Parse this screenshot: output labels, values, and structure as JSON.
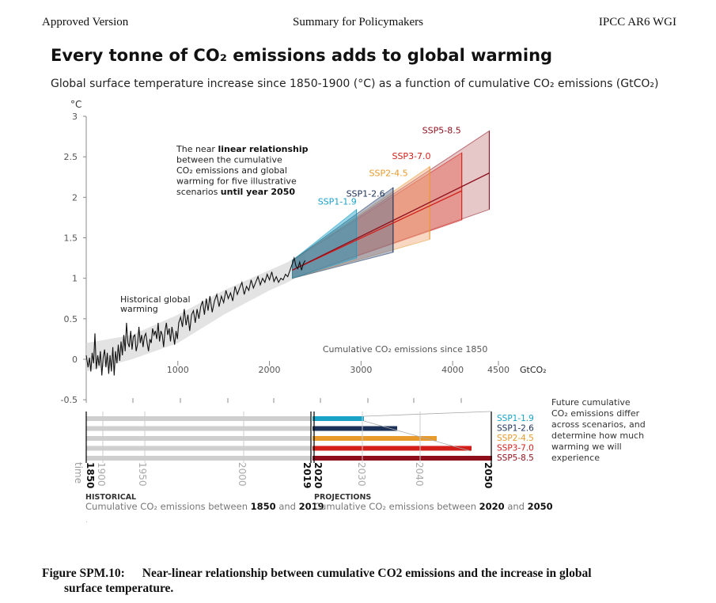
{
  "header": {
    "left": "Approved Version",
    "center": "Summary for Policymakers",
    "right": "IPCC AR6 WGI"
  },
  "title": "Every tonne of CO₂ emissions adds to global warming",
  "subtitle": "Global surface temperature increase since 1850-1900 (°C) as a function of cumulative CO₂ emissions (GtCO₂)",
  "chart_data": {
    "type": "line",
    "ylabel": "°C",
    "xlabel": "GtCO₂",
    "x_axis_title": "Cumulative CO₂ emissions since 1850",
    "ylim": [
      -0.5,
      3
    ],
    "xlim": [
      0,
      4500
    ],
    "y_ticks": [
      "3",
      "2.5",
      "2",
      "1.5",
      "1",
      "0.5",
      "0",
      "-0.5"
    ],
    "x_ticks": [
      "1000",
      "2000",
      "3000",
      "4000",
      "4500"
    ],
    "annotation_linear_lines": [
      {
        "parts": [
          {
            "t": "The near ",
            "b": false
          },
          {
            "t": "linear relationship",
            "b": true
          }
        ]
      },
      {
        "parts": [
          {
            "t": "between the cumulative",
            "b": false
          }
        ]
      },
      {
        "parts": [
          {
            "t": "CO₂ emissions and global",
            "b": false
          }
        ]
      },
      {
        "parts": [
          {
            "t": "warming for five illustrative",
            "b": false
          }
        ]
      },
      {
        "parts": [
          {
            "t": "scenarios ",
            "b": false
          },
          {
            "t": "until year 2050",
            "b": true
          }
        ]
      }
    ],
    "annotation_historical": [
      "Historical global",
      "warming"
    ],
    "historical": [
      [
        0,
        0.05
      ],
      [
        20,
        -0.1
      ],
      [
        35,
        0.02
      ],
      [
        50,
        -0.15
      ],
      [
        65,
        0.08
      ],
      [
        80,
        -0.05
      ],
      [
        95,
        0.32
      ],
      [
        110,
        -0.12
      ],
      [
        125,
        0.05
      ],
      [
        140,
        -0.08
      ],
      [
        155,
        0.1
      ],
      [
        170,
        -0.2
      ],
      [
        185,
        0.02
      ],
      [
        200,
        0.12
      ],
      [
        215,
        -0.1
      ],
      [
        230,
        0.08
      ],
      [
        245,
        -0.18
      ],
      [
        260,
        0.05
      ],
      [
        275,
        -0.15
      ],
      [
        290,
        0.15
      ],
      [
        305,
        -0.2
      ],
      [
        320,
        0.1
      ],
      [
        335,
        -0.05
      ],
      [
        350,
        0.18
      ],
      [
        365,
        -0.02
      ],
      [
        380,
        0.22
      ],
      [
        395,
        0.05
      ],
      [
        410,
        0.3
      ],
      [
        425,
        0.1
      ],
      [
        440,
        0.45
      ],
      [
        455,
        0.2
      ],
      [
        470,
        0.15
      ],
      [
        485,
        0.35
      ],
      [
        500,
        0.12
      ],
      [
        515,
        0.28
      ],
      [
        530,
        0.3
      ],
      [
        545,
        0.1
      ],
      [
        560,
        0.18
      ],
      [
        575,
        0.4
      ],
      [
        590,
        0.2
      ],
      [
        605,
        0.3
      ],
      [
        620,
        0.15
      ],
      [
        635,
        0.28
      ],
      [
        650,
        0.32
      ],
      [
        665,
        0.2
      ],
      [
        680,
        0.1
      ],
      [
        695,
        0.25
      ],
      [
        710,
        0.2
      ],
      [
        725,
        0.38
      ],
      [
        740,
        0.3
      ],
      [
        755,
        0.35
      ],
      [
        770,
        0.25
      ],
      [
        785,
        0.45
      ],
      [
        800,
        0.22
      ],
      [
        815,
        0.35
      ],
      [
        830,
        0.3
      ],
      [
        845,
        0.15
      ],
      [
        860,
        0.35
      ],
      [
        875,
        0.45
      ],
      [
        890,
        0.3
      ],
      [
        905,
        0.38
      ],
      [
        920,
        0.22
      ],
      [
        935,
        0.4
      ],
      [
        950,
        0.3
      ],
      [
        965,
        0.18
      ],
      [
        980,
        0.35
      ],
      [
        995,
        0.25
      ],
      [
        1010,
        0.45
      ],
      [
        1030,
        0.52
      ],
      [
        1050,
        0.4
      ],
      [
        1070,
        0.62
      ],
      [
        1090,
        0.42
      ],
      [
        1110,
        0.55
      ],
      [
        1130,
        0.35
      ],
      [
        1150,
        0.55
      ],
      [
        1170,
        0.6
      ],
      [
        1190,
        0.45
      ],
      [
        1210,
        0.62
      ],
      [
        1230,
        0.5
      ],
      [
        1250,
        0.65
      ],
      [
        1270,
        0.72
      ],
      [
        1290,
        0.55
      ],
      [
        1310,
        0.75
      ],
      [
        1330,
        0.6
      ],
      [
        1350,
        0.78
      ],
      [
        1375,
        0.58
      ],
      [
        1400,
        0.72
      ],
      [
        1425,
        0.8
      ],
      [
        1450,
        0.65
      ],
      [
        1475,
        0.78
      ],
      [
        1500,
        0.7
      ],
      [
        1525,
        0.85
      ],
      [
        1550,
        0.75
      ],
      [
        1575,
        0.82
      ],
      [
        1600,
        0.72
      ],
      [
        1625,
        0.9
      ],
      [
        1650,
        0.8
      ],
      [
        1675,
        0.88
      ],
      [
        1700,
        0.95
      ],
      [
        1725,
        0.8
      ],
      [
        1750,
        0.9
      ],
      [
        1775,
        0.85
      ],
      [
        1800,
        0.98
      ],
      [
        1825,
        0.88
      ],
      [
        1850,
        0.95
      ],
      [
        1875,
        1.02
      ],
      [
        1900,
        0.92
      ],
      [
        1925,
        1.0
      ],
      [
        1950,
        0.95
      ],
      [
        1975,
        1.05
      ],
      [
        2000,
        0.98
      ],
      [
        2025,
        1.08
      ],
      [
        2050,
        0.96
      ],
      [
        2075,
        1.02
      ],
      [
        2100,
        0.95
      ],
      [
        2125,
        1.0
      ],
      [
        2150,
        0.98
      ],
      [
        2175,
        1.05
      ],
      [
        2200,
        1.02
      ],
      [
        2225,
        1.1
      ],
      [
        2250,
        1.18
      ],
      [
        2270,
        1.25
      ],
      [
        2290,
        1.15
      ],
      [
        2310,
        1.12
      ],
      [
        2330,
        1.2
      ],
      [
        2350,
        1.1
      ],
      [
        2370,
        1.18
      ],
      [
        2390,
        1.22
      ]
    ],
    "historical_band_upper": [
      [
        0,
        0.2
      ],
      [
        500,
        0.3
      ],
      [
        1000,
        0.55
      ],
      [
        1500,
        0.85
      ],
      [
        2000,
        1.1
      ],
      [
        2200,
        1.2
      ],
      [
        2400,
        1.35
      ]
    ],
    "historical_band_lower": [
      [
        0,
        -0.15
      ],
      [
        500,
        0.0
      ],
      [
        1000,
        0.2
      ],
      [
        1500,
        0.55
      ],
      [
        2000,
        0.85
      ],
      [
        2200,
        0.95
      ],
      [
        2400,
        1.08
      ]
    ],
    "scenarios": [
      {
        "name": "SSP1-1.9",
        "color": "#1ba2c7",
        "fill": "#1ba2c7",
        "x_end": 2950,
        "center_end": 1.6,
        "upper_end": 1.85,
        "lower_end": 1.25,
        "draw_line": false
      },
      {
        "name": "SSP1-2.6",
        "color": "#1b3158",
        "fill": "#5a6f94",
        "x_end": 3350,
        "center_end": 1.7,
        "upper_end": 2.12,
        "lower_end": 1.32,
        "draw_line": false
      },
      {
        "name": "SSP2-4.5",
        "color": "#e89a2c",
        "fill": "#efa67a",
        "x_end": 3750,
        "center_end": 1.88,
        "upper_end": 2.38,
        "lower_end": 1.48,
        "draw_line": false
      },
      {
        "name": "SSP3-7.0",
        "color": "#d21f1a",
        "fill": "#e55e4e",
        "x_end": 4100,
        "center_end": 2.08,
        "upper_end": 2.55,
        "lower_end": 1.72,
        "draw_line": true
      },
      {
        "name": "SSP5-8.5",
        "color": "#8e0e1b",
        "fill": "#c78686",
        "x_end": 4400,
        "center_end": 2.3,
        "upper_end": 2.82,
        "lower_end": 1.85,
        "draw_line": true
      }
    ],
    "projection_start": {
      "x": 2250,
      "upper": 1.22,
      "lower": 1.0,
      "center": 1.1
    }
  },
  "timeline": {
    "time_label": "time",
    "year_labels_bold": [
      "1850",
      "2019",
      "2020",
      "2050"
    ],
    "year_labels_light": [
      "1900",
      "1950",
      "2000",
      "2030",
      "2040"
    ],
    "historical_title": "HISTORICAL",
    "historical_desc_parts": [
      {
        "t": "Cumulative CO₂ emissions between ",
        "b": false
      },
      {
        "t": "1850",
        "b": true
      },
      {
        "t": " and ",
        "b": false
      },
      {
        "t": "2019",
        "b": true
      }
    ],
    "projections_title": "PROJECTIONS",
    "projections_desc_parts": [
      {
        "t": "Cumulative CO₂ emissions between ",
        "b": false
      },
      {
        "t": "2020",
        "b": true
      },
      {
        "t": " and ",
        "b": false
      },
      {
        "t": "2050",
        "b": true
      }
    ],
    "future_note": [
      "Future cumulative",
      "CO₂ emissions differ",
      "across scenarios, and",
      "determine how much",
      "warming we will",
      "experience"
    ],
    "bar_labels": [
      "SSP1-1.9",
      "SSP1-2.6",
      "SSP2-4.5",
      "SSP3-7.0",
      "SSP5-8.5"
    ]
  },
  "caption": {
    "number": "Figure SPM.10:",
    "text_line1": "Near-linear relationship between cumulative CO2 emissions and the increase in global",
    "text_line2": "surface temperature."
  }
}
